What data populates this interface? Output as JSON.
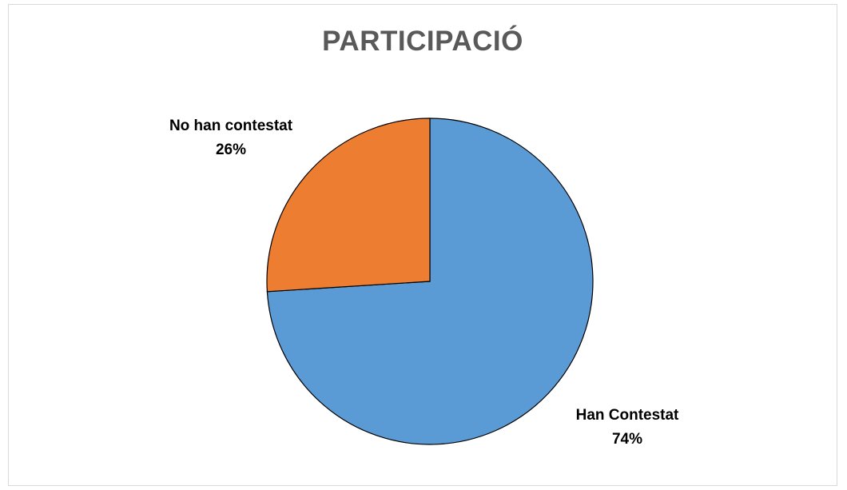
{
  "chart_data": {
    "type": "pie",
    "title": "PARTICIPACIÓ",
    "slices": [
      {
        "label": "Han Contestat",
        "value": 74,
        "value_label": "74%",
        "color": "#5b9bd5"
      },
      {
        "label": "No han contestat",
        "value": 26,
        "value_label": "26%",
        "color": "#ed7d31"
      }
    ],
    "start_angle_deg": 0,
    "direction": "clockwise",
    "legend": "none",
    "data_labels": "outside"
  }
}
